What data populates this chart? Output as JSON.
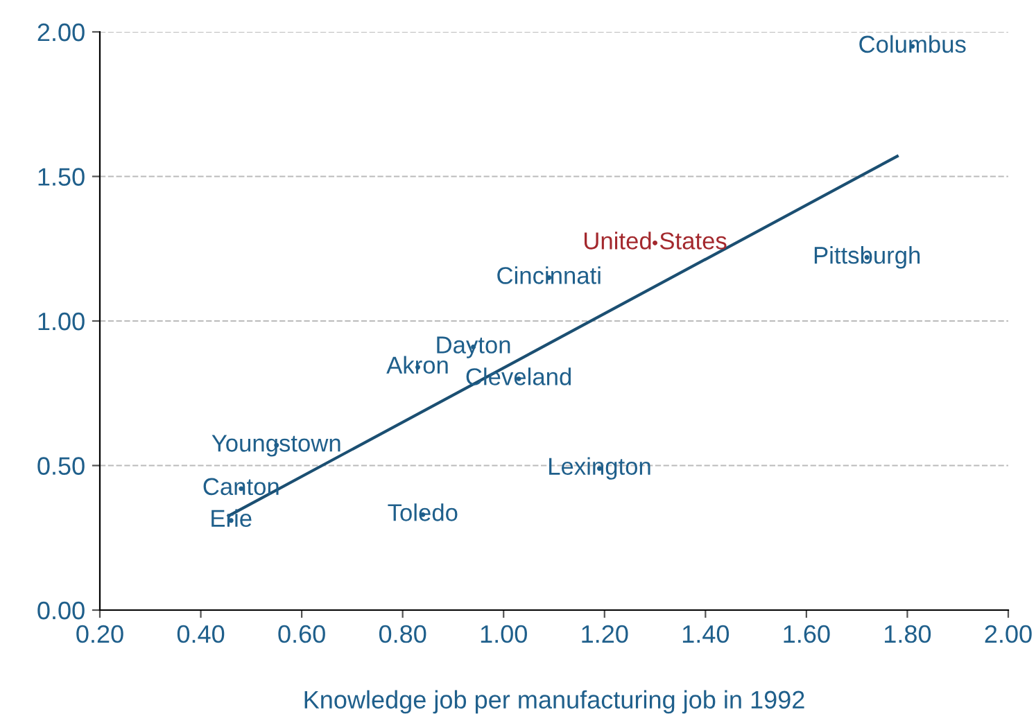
{
  "chart_data": {
    "type": "scatter",
    "xlabel": "Knowledge job per manufacturing job in 1992",
    "xlim": [
      0.2,
      2.0
    ],
    "ylim": [
      0,
      2.0
    ],
    "xticks": [
      {
        "value": 0.2,
        "label": "0.20"
      },
      {
        "value": 0.4,
        "label": "0.40"
      },
      {
        "value": 0.6,
        "label": "0.60"
      },
      {
        "value": 0.8,
        "label": "0.80"
      },
      {
        "value": 1.0,
        "label": "1.00"
      },
      {
        "value": 1.2,
        "label": "1.20"
      },
      {
        "value": 1.4,
        "label": "1.40"
      },
      {
        "value": 1.6,
        "label": "1.60"
      },
      {
        "value": 1.8,
        "label": "1.80"
      },
      {
        "value": 2.0,
        "label": "2.00"
      }
    ],
    "yticks": [
      {
        "value": 0,
        "label": "0.00"
      },
      {
        "value": 0.5,
        "label": "0.50"
      },
      {
        "value": 1.0,
        "label": "1.00"
      },
      {
        "value": 1.5,
        "label": "1.50"
      },
      {
        "value": 2.0,
        "label": "2.00"
      }
    ],
    "grid": "y",
    "marker": "circle",
    "legend": false,
    "series": [
      {
        "color": "#1f5f8b",
        "x": [
          1.81,
          1.72,
          1.09,
          0.94,
          0.83,
          1.03,
          0.55,
          1.19,
          0.48,
          0.46,
          0.84
        ],
        "values": [
          1.95,
          1.22,
          1.15,
          0.91,
          0.84,
          0.8,
          0.57,
          0.49,
          0.42,
          0.31,
          0.33
        ]
      },
      {
        "color": "#a3282d",
        "x": [
          1.3
        ],
        "values": [
          1.27
        ]
      },
      {
        "type": "line",
        "color": "#1b4f72",
        "x": [
          0.455,
          1.78
        ],
        "values": [
          0.326,
          1.57
        ],
        "marker": "none",
        "line_style": "solid"
      }
    ],
    "annotations": [
      {
        "text": "Columbus",
        "x": 1.81,
        "y": 1.95
      },
      {
        "text": "United States",
        "x": 1.3,
        "y": 1.27
      },
      {
        "text": "Pittsburgh",
        "x": 1.72,
        "y": 1.22
      },
      {
        "text": "Cincinnati",
        "x": 1.09,
        "y": 1.15
      },
      {
        "text": "Dayton",
        "x": 0.94,
        "y": 0.91
      },
      {
        "text": "Akron",
        "x": 0.83,
        "y": 0.84
      },
      {
        "text": "Cleveland",
        "x": 1.03,
        "y": 0.8
      },
      {
        "text": "Youngstown",
        "x": 0.55,
        "y": 0.57
      },
      {
        "text": "Lexington",
        "x": 1.19,
        "y": 0.49
      },
      {
        "text": "Canton",
        "x": 0.48,
        "y": 0.42
      },
      {
        "text": "Erie",
        "x": 0.46,
        "y": 0.31
      },
      {
        "text": "Toledo",
        "x": 0.84,
        "y": 0.33
      }
    ]
  }
}
